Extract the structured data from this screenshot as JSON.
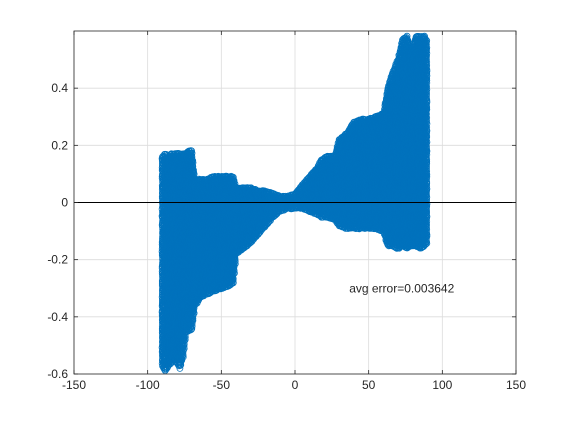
{
  "chart_data": {
    "type": "scatter",
    "title": "",
    "xlabel": "",
    "ylabel": "",
    "xlim": [
      -150,
      150
    ],
    "ylim": [
      -0.6,
      0.6
    ],
    "xticks": [
      -150,
      -100,
      -50,
      0,
      50,
      100,
      150
    ],
    "yticks": [
      -0.6,
      -0.4,
      -0.2,
      0,
      0.2,
      0.4
    ],
    "xtick_labels": [
      "-150",
      "-100",
      "-50",
      "0",
      "50",
      "100",
      "150"
    ],
    "ytick_labels": [
      "-0.6",
      "-0.4",
      "-0.2",
      "0",
      "0.2",
      "0.4"
    ],
    "grid": true,
    "legend": "none",
    "marker": "open-circle",
    "series_color": "#0072BD",
    "reference_line": {
      "y": 0,
      "color": "#000000"
    },
    "annotation": {
      "text": "avg error=0.003642",
      "x": 30,
      "y": -0.3
    },
    "series": [
      {
        "name": "",
        "envelope": [
          {
            "x": -90,
            "ymin": -0.57,
            "ymax": 0.16
          },
          {
            "x": -88,
            "ymin": -0.59,
            "ymax": 0.17
          },
          {
            "x": -86,
            "ymin": -0.57,
            "ymax": 0.16
          },
          {
            "x": -84,
            "ymin": -0.56,
            "ymax": 0.17
          },
          {
            "x": -82,
            "ymin": -0.55,
            "ymax": 0.17
          },
          {
            "x": -80,
            "ymin": -0.56,
            "ymax": 0.17
          },
          {
            "x": -78,
            "ymin": -0.58,
            "ymax": 0.17
          },
          {
            "x": -76,
            "ymin": -0.54,
            "ymax": 0.17
          },
          {
            "x": -74,
            "ymin": -0.45,
            "ymax": 0.17
          },
          {
            "x": -72,
            "ymin": -0.45,
            "ymax": 0.18
          },
          {
            "x": -70,
            "ymin": -0.44,
            "ymax": 0.18
          },
          {
            "x": -68,
            "ymin": -0.36,
            "ymax": 0.08
          },
          {
            "x": -64,
            "ymin": -0.33,
            "ymax": 0.08
          },
          {
            "x": -60,
            "ymin": -0.32,
            "ymax": 0.08
          },
          {
            "x": -55,
            "ymin": -0.31,
            "ymax": 0.09
          },
          {
            "x": -50,
            "ymin": -0.3,
            "ymax": 0.09
          },
          {
            "x": -45,
            "ymin": -0.29,
            "ymax": 0.09
          },
          {
            "x": -42,
            "ymin": -0.28,
            "ymax": 0.09
          },
          {
            "x": -40,
            "ymin": -0.18,
            "ymax": 0.05
          },
          {
            "x": -35,
            "ymin": -0.16,
            "ymax": 0.05
          },
          {
            "x": -30,
            "ymin": -0.14,
            "ymax": 0.05
          },
          {
            "x": -25,
            "ymin": -0.11,
            "ymax": 0.04
          },
          {
            "x": -20,
            "ymin": -0.08,
            "ymax": 0.04
          },
          {
            "x": -15,
            "ymin": -0.05,
            "ymax": 0.03
          },
          {
            "x": -10,
            "ymin": -0.03,
            "ymax": 0.02
          },
          {
            "x": -5,
            "ymin": -0.02,
            "ymax": 0.02
          },
          {
            "x": 0,
            "ymin": -0.02,
            "ymax": 0.03
          },
          {
            "x": 5,
            "ymin": -0.02,
            "ymax": 0.06
          },
          {
            "x": 10,
            "ymin": -0.03,
            "ymax": 0.09
          },
          {
            "x": 15,
            "ymin": -0.04,
            "ymax": 0.12
          },
          {
            "x": 18,
            "ymin": -0.05,
            "ymax": 0.15
          },
          {
            "x": 22,
            "ymin": -0.05,
            "ymax": 0.16
          },
          {
            "x": 27,
            "ymin": -0.06,
            "ymax": 0.16
          },
          {
            "x": 30,
            "ymin": -0.08,
            "ymax": 0.22
          },
          {
            "x": 35,
            "ymin": -0.09,
            "ymax": 0.24
          },
          {
            "x": 40,
            "ymin": -0.09,
            "ymax": 0.28
          },
          {
            "x": 45,
            "ymin": -0.09,
            "ymax": 0.29
          },
          {
            "x": 50,
            "ymin": -0.09,
            "ymax": 0.29
          },
          {
            "x": 55,
            "ymin": -0.09,
            "ymax": 0.3
          },
          {
            "x": 60,
            "ymin": -0.1,
            "ymax": 0.31
          },
          {
            "x": 63,
            "ymin": -0.15,
            "ymax": 0.4
          },
          {
            "x": 66,
            "ymin": -0.15,
            "ymax": 0.45
          },
          {
            "x": 70,
            "ymin": -0.16,
            "ymax": 0.5
          },
          {
            "x": 73,
            "ymin": -0.15,
            "ymax": 0.57
          },
          {
            "x": 76,
            "ymin": -0.16,
            "ymax": 0.58
          },
          {
            "x": 79,
            "ymin": -0.15,
            "ymax": 0.52
          },
          {
            "x": 82,
            "ymin": -0.15,
            "ymax": 0.58
          },
          {
            "x": 85,
            "ymin": -0.16,
            "ymax": 0.58
          },
          {
            "x": 88,
            "ymin": -0.15,
            "ymax": 0.58
          },
          {
            "x": 90,
            "ymin": -0.14,
            "ymax": 0.56
          }
        ]
      }
    ]
  }
}
